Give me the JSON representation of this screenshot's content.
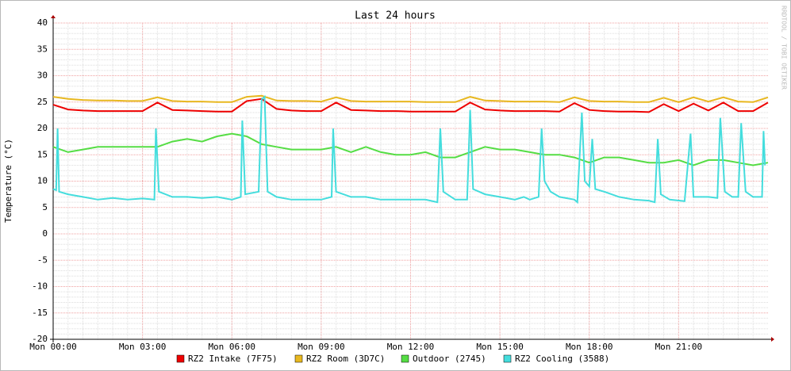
{
  "chart_data": {
    "type": "line",
    "title": "Last 24 hours",
    "y_label": "Temperature (°C)",
    "watermark": "RRDTOOL / TOBI OETIKER",
    "xlim": [
      0,
      24
    ],
    "xticks": [
      {
        "value": 0,
        "label": "Mon 00:00"
      },
      {
        "value": 3,
        "label": "Mon 03:00"
      },
      {
        "value": 6,
        "label": "Mon 06:00"
      },
      {
        "value": 9,
        "label": "Mon 09:00"
      },
      {
        "value": 12,
        "label": "Mon 12:00"
      },
      {
        "value": 15,
        "label": "Mon 15:00"
      },
      {
        "value": 18,
        "label": "Mon 18:00"
      },
      {
        "value": 21,
        "label": "Mon 21:00"
      }
    ],
    "ylim": [
      -20,
      40
    ],
    "yticks": [
      40,
      35,
      30,
      25,
      20,
      15,
      10,
      5,
      0,
      -5,
      -10,
      -15,
      -20
    ],
    "grid": true,
    "x": [
      0,
      0.5,
      1,
      1.5,
      2,
      2.5,
      3,
      3.5,
      4,
      4.5,
      5,
      5.5,
      6,
      6.5,
      7,
      7.5,
      8,
      8.5,
      9,
      9.5,
      10,
      10.5,
      11,
      11.5,
      12,
      12.5,
      13,
      13.5,
      14,
      14.5,
      15,
      15.5,
      16,
      16.5,
      17,
      17.5,
      18,
      18.5,
      19,
      19.5,
      20,
      20.5,
      21,
      21.5,
      22,
      22.5,
      23,
      23.5,
      24
    ],
    "series": [
      {
        "name": "RZ2 Intake (7F75)",
        "color": "#ee0000",
        "values": [
          24.5,
          23.6,
          23.4,
          23.3,
          23.3,
          23.3,
          23.3,
          24.9,
          23.5,
          23.4,
          23.3,
          23.2,
          23.2,
          25.2,
          25.6,
          23.7,
          23.4,
          23.3,
          23.3,
          24.9,
          23.5,
          23.4,
          23.3,
          23.3,
          23.2,
          23.2,
          23.2,
          23.2,
          24.9,
          23.6,
          23.4,
          23.3,
          23.3,
          23.3,
          23.2,
          24.8,
          23.5,
          23.3,
          23.2,
          23.2,
          23.1,
          24.6,
          23.3,
          24.7,
          23.4,
          24.9,
          23.3,
          23.3,
          24.9
        ]
      },
      {
        "name": "RZ2 Room (3D7C)",
        "color": "#e8b820",
        "values": [
          26.0,
          25.6,
          25.4,
          25.3,
          25.3,
          25.2,
          25.2,
          25.9,
          25.2,
          25.1,
          25.1,
          25.0,
          25.0,
          26.0,
          26.2,
          25.3,
          25.2,
          25.2,
          25.1,
          25.9,
          25.2,
          25.1,
          25.1,
          25.1,
          25.1,
          25.0,
          25.0,
          25.0,
          26.0,
          25.3,
          25.2,
          25.1,
          25.1,
          25.1,
          25.0,
          25.9,
          25.2,
          25.1,
          25.1,
          25.0,
          25.0,
          25.8,
          25.0,
          25.9,
          25.1,
          25.9,
          25.1,
          25.0,
          25.9
        ]
      },
      {
        "name": "Outdoor (2745)",
        "color": "#55dd44",
        "values": [
          16.5,
          15.5,
          16.0,
          16.5,
          16.5,
          16.5,
          16.5,
          16.5,
          17.5,
          18.0,
          17.5,
          18.5,
          19.0,
          18.5,
          17.0,
          16.5,
          16.0,
          16.0,
          16.0,
          16.5,
          15.5,
          16.5,
          15.5,
          15.0,
          15.0,
          15.5,
          14.5,
          14.5,
          15.5,
          16.5,
          16.0,
          16.0,
          15.5,
          15.0,
          15.0,
          14.5,
          13.5,
          14.5,
          14.5,
          14.0,
          13.5,
          13.5,
          14.0,
          13.0,
          14.0,
          14.0,
          13.5,
          13.0,
          13.5
        ]
      },
      {
        "name": "RZ2 Cooling (3588)",
        "color": "#44dddd",
        "x": [
          0,
          0.1,
          0.15,
          0.2,
          0.5,
          1,
          1.5,
          2,
          2.5,
          3,
          3.4,
          3.45,
          3.55,
          4,
          4.5,
          5,
          5.5,
          6,
          6.3,
          6.35,
          6.45,
          6.9,
          7,
          7.1,
          7.2,
          7.5,
          8,
          8.5,
          9,
          9.35,
          9.4,
          9.5,
          10,
          10.5,
          11,
          12,
          12.5,
          12.9,
          13,
          13.1,
          13.5,
          13.9,
          14,
          14.1,
          14.5,
          15,
          15.5,
          15.8,
          16,
          16.3,
          16.4,
          16.5,
          16.7,
          17,
          17.5,
          17.6,
          17.75,
          17.85,
          18,
          18.1,
          18.2,
          18.5,
          19,
          19.5,
          20,
          20.2,
          20.3,
          20.4,
          20.7,
          21.2,
          21.4,
          21.5,
          22,
          22.3,
          22.4,
          22.55,
          22.8,
          23,
          23.1,
          23.25,
          23.5,
          23.8,
          23.85,
          23.9
        ],
        "values": [
          8.5,
          8.3,
          20,
          8,
          7.5,
          7,
          6.5,
          6.8,
          6.5,
          6.7,
          6.5,
          20,
          8,
          7,
          7,
          6.8,
          7,
          6.5,
          7,
          21.5,
          7.5,
          8,
          25.5,
          26,
          8,
          7,
          6.5,
          6.5,
          6.5,
          7,
          20,
          8,
          7,
          7,
          6.5,
          6.5,
          6.5,
          6,
          20,
          8,
          6.5,
          6.5,
          23.5,
          8.5,
          7.5,
          7,
          6.5,
          7,
          6.5,
          7,
          20,
          10,
          8,
          7,
          6.5,
          6,
          23,
          10,
          9,
          18,
          8.5,
          8,
          7,
          6.5,
          6.3,
          6,
          18,
          7.5,
          6.5,
          6.2,
          19,
          7,
          7,
          6.8,
          22,
          8,
          7,
          7,
          21,
          8,
          7,
          7,
          19.5,
          13
        ]
      }
    ]
  }
}
